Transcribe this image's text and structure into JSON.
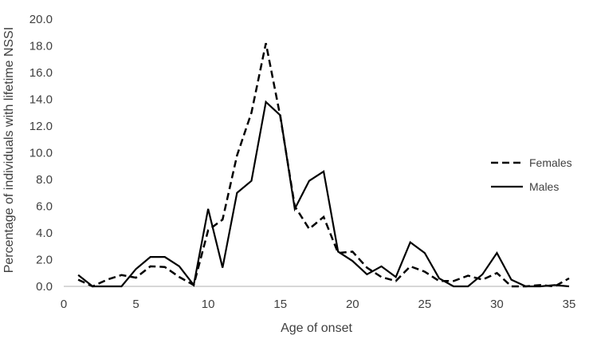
{
  "chart_data": {
    "type": "line",
    "title": "",
    "xlabel": "Age of onset",
    "ylabel": "Percentage of individuals with lifetime NSSI",
    "xlim": [
      0,
      35
    ],
    "ylim": [
      0,
      20
    ],
    "xticks": [
      0,
      5,
      10,
      15,
      20,
      25,
      30,
      35
    ],
    "yticks": [
      0.0,
      2.0,
      4.0,
      6.0,
      8.0,
      10.0,
      12.0,
      14.0,
      16.0,
      18.0,
      20.0
    ],
    "ytick_decimals": 1,
    "grid": false,
    "legend_position": "right",
    "x": [
      1,
      2,
      3,
      4,
      5,
      6,
      7,
      8,
      9,
      10,
      11,
      12,
      13,
      14,
      15,
      16,
      17,
      18,
      19,
      20,
      21,
      22,
      23,
      24,
      25,
      26,
      27,
      28,
      29,
      30,
      31,
      32,
      33,
      34,
      35
    ],
    "series": [
      {
        "name": "Females",
        "style": "dashed",
        "color": "#000000",
        "values": [
          0.5,
          0.0,
          0.5,
          0.85,
          0.65,
          1.5,
          1.45,
          0.7,
          0.1,
          4.2,
          5.0,
          9.8,
          13.0,
          18.2,
          12.7,
          6.0,
          4.3,
          5.2,
          2.5,
          2.6,
          1.4,
          0.7,
          0.4,
          1.5,
          1.1,
          0.4,
          0.4,
          0.8,
          0.5,
          1.0,
          0.0,
          0.0,
          0.1,
          0.0,
          0.6
        ]
      },
      {
        "name": "Males",
        "style": "solid",
        "color": "#000000",
        "values": [
          0.85,
          0.0,
          0.0,
          0.0,
          1.3,
          2.2,
          2.2,
          1.5,
          0.1,
          5.8,
          1.4,
          7.0,
          7.9,
          13.8,
          12.8,
          5.8,
          7.9,
          8.6,
          2.6,
          1.9,
          0.9,
          1.5,
          0.7,
          3.3,
          2.5,
          0.6,
          0.0,
          0.0,
          0.9,
          2.5,
          0.5,
          0.0,
          0.0,
          0.1,
          0.0
        ]
      }
    ]
  },
  "colors": {
    "axis": "#bfbfbf",
    "text": "#404040",
    "series": "#000000"
  }
}
